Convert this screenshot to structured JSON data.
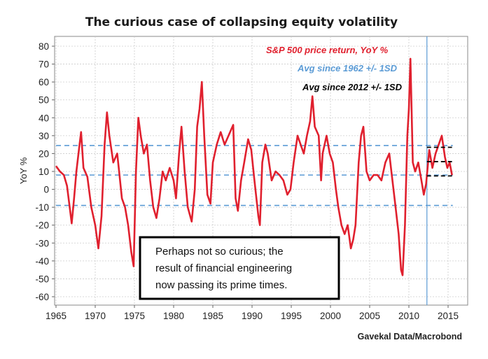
{
  "chart_data": {
    "type": "line",
    "title": "The curious case of collapsing equity volatility",
    "ylabel": "YoY %",
    "xlabel": "",
    "source": "Gavekal Data/Macrobond",
    "ylim": [
      -60,
      80
    ],
    "xlim": [
      1965,
      2015.6
    ],
    "grid": true,
    "legend_placement": "top-right",
    "x_ticks": [
      1965,
      1970,
      1975,
      1980,
      1985,
      1990,
      1995,
      2000,
      2005,
      2010,
      2015
    ],
    "y_ticks": [
      -60,
      -50,
      -40,
      -30,
      -20,
      -10,
      0,
      10,
      20,
      30,
      40,
      50,
      60,
      70,
      80
    ],
    "legend": [
      {
        "label": "S&P 500 price return, YoY %",
        "color": "#e0202e",
        "style": "italic-bold"
      },
      {
        "label": "Avg since 1962 +/- 1SD",
        "color": "#5b9bd5",
        "style": "italic-bold"
      },
      {
        "label": "Avg since 2012 +/- 1SD",
        "color": "#000000",
        "style": "italic-bold"
      }
    ],
    "annotation": {
      "lines": [
        "Perhaps not so curious; the",
        "result of financial engineering",
        "now passing its prime times."
      ]
    },
    "series": [
      {
        "name": "S&P 500 price return, YoY %",
        "color": "#e0202e",
        "points": [
          [
            1965.0,
            13
          ],
          [
            1965.5,
            10
          ],
          [
            1966.0,
            8
          ],
          [
            1966.4,
            2
          ],
          [
            1966.8,
            -12
          ],
          [
            1967.0,
            -19
          ],
          [
            1967.3,
            -5
          ],
          [
            1967.6,
            10
          ],
          [
            1968.0,
            25
          ],
          [
            1968.2,
            32
          ],
          [
            1968.5,
            12
          ],
          [
            1969.0,
            7
          ],
          [
            1969.5,
            -10
          ],
          [
            1970.0,
            -20
          ],
          [
            1970.4,
            -33
          ],
          [
            1970.8,
            -15
          ],
          [
            1971.2,
            25
          ],
          [
            1971.5,
            43
          ],
          [
            1971.8,
            30
          ],
          [
            1972.3,
            15
          ],
          [
            1972.8,
            20
          ],
          [
            1973.0,
            12
          ],
          [
            1973.4,
            -5
          ],
          [
            1973.8,
            -10
          ],
          [
            1974.2,
            -20
          ],
          [
            1974.6,
            -35
          ],
          [
            1974.9,
            -43
          ],
          [
            1975.2,
            10
          ],
          [
            1975.5,
            40
          ],
          [
            1975.8,
            30
          ],
          [
            1976.2,
            20
          ],
          [
            1976.6,
            25
          ],
          [
            1977.0,
            5
          ],
          [
            1977.4,
            -10
          ],
          [
            1977.8,
            -16
          ],
          [
            1978.2,
            -5
          ],
          [
            1978.6,
            10
          ],
          [
            1979.0,
            5
          ],
          [
            1979.5,
            12
          ],
          [
            1980.0,
            5
          ],
          [
            1980.3,
            -5
          ],
          [
            1980.7,
            20
          ],
          [
            1981.0,
            35
          ],
          [
            1981.4,
            10
          ],
          [
            1981.8,
            -10
          ],
          [
            1982.3,
            -18
          ],
          [
            1982.7,
            0
          ],
          [
            1983.0,
            35
          ],
          [
            1983.3,
            45
          ],
          [
            1983.6,
            60
          ],
          [
            1983.9,
            30
          ],
          [
            1984.3,
            -3
          ],
          [
            1984.7,
            -8
          ],
          [
            1985.0,
            15
          ],
          [
            1985.5,
            25
          ],
          [
            1986.0,
            32
          ],
          [
            1986.5,
            25
          ],
          [
            1987.0,
            30
          ],
          [
            1987.6,
            36
          ],
          [
            1987.9,
            -5
          ],
          [
            1988.2,
            -12
          ],
          [
            1988.6,
            5
          ],
          [
            1989.0,
            15
          ],
          [
            1989.5,
            28
          ],
          [
            1989.9,
            22
          ],
          [
            1990.3,
            5
          ],
          [
            1990.8,
            -15
          ],
          [
            1991.0,
            -20
          ],
          [
            1991.3,
            15
          ],
          [
            1991.7,
            25
          ],
          [
            1992.0,
            20
          ],
          [
            1992.5,
            5
          ],
          [
            1993.0,
            10
          ],
          [
            1993.5,
            8
          ],
          [
            1994.0,
            5
          ],
          [
            1994.5,
            -3
          ],
          [
            1994.9,
            0
          ],
          [
            1995.3,
            15
          ],
          [
            1995.8,
            30
          ],
          [
            1996.2,
            25
          ],
          [
            1996.6,
            20
          ],
          [
            1997.0,
            30
          ],
          [
            1997.4,
            38
          ],
          [
            1997.7,
            52
          ],
          [
            1998.0,
            35
          ],
          [
            1998.5,
            30
          ],
          [
            1998.8,
            5
          ],
          [
            1999.0,
            20
          ],
          [
            1999.5,
            30
          ],
          [
            1999.9,
            20
          ],
          [
            2000.3,
            15
          ],
          [
            2000.7,
            0
          ],
          [
            2001.0,
            -10
          ],
          [
            2001.4,
            -20
          ],
          [
            2001.8,
            -25
          ],
          [
            2002.2,
            -20
          ],
          [
            2002.6,
            -33
          ],
          [
            2002.9,
            -28
          ],
          [
            2003.2,
            -20
          ],
          [
            2003.6,
            15
          ],
          [
            2003.9,
            30
          ],
          [
            2004.2,
            35
          ],
          [
            2004.6,
            10
          ],
          [
            2005.0,
            5
          ],
          [
            2005.5,
            8
          ],
          [
            2006.0,
            8
          ],
          [
            2006.5,
            5
          ],
          [
            2007.0,
            15
          ],
          [
            2007.5,
            20
          ],
          [
            2007.9,
            5
          ],
          [
            2008.3,
            -10
          ],
          [
            2008.7,
            -25
          ],
          [
            2009.0,
            -45
          ],
          [
            2009.2,
            -48
          ],
          [
            2009.5,
            -20
          ],
          [
            2009.8,
            30
          ],
          [
            2010.0,
            45
          ],
          [
            2010.2,
            73
          ],
          [
            2010.5,
            15
          ],
          [
            2010.8,
            10
          ],
          [
            2011.2,
            15
          ],
          [
            2011.6,
            5
          ],
          [
            2011.9,
            -3
          ],
          [
            2012.2,
            3
          ],
          [
            2012.6,
            22
          ],
          [
            2013.0,
            12
          ],
          [
            2013.4,
            20
          ],
          [
            2013.8,
            25
          ],
          [
            2014.2,
            30
          ],
          [
            2014.6,
            18
          ],
          [
            2014.9,
            12
          ],
          [
            2015.2,
            15
          ],
          [
            2015.5,
            8
          ]
        ]
      }
    ],
    "reference_lines": [
      {
        "name": "Avg since 1962 +/- 1SD",
        "color": "#5b9bd5",
        "values": [
          24.5,
          8,
          -9
        ],
        "x_from": 1965,
        "x_to": 2015.6
      },
      {
        "name": "Avg since 2012 +/- 1SD",
        "color": "#000000",
        "values": [
          23.5,
          15.5,
          7.5
        ],
        "x_from": 2012.3,
        "x_to": 2015.5
      }
    ],
    "vertical_marker": {
      "x": 2012.3,
      "color": "#5b9bd5"
    }
  }
}
